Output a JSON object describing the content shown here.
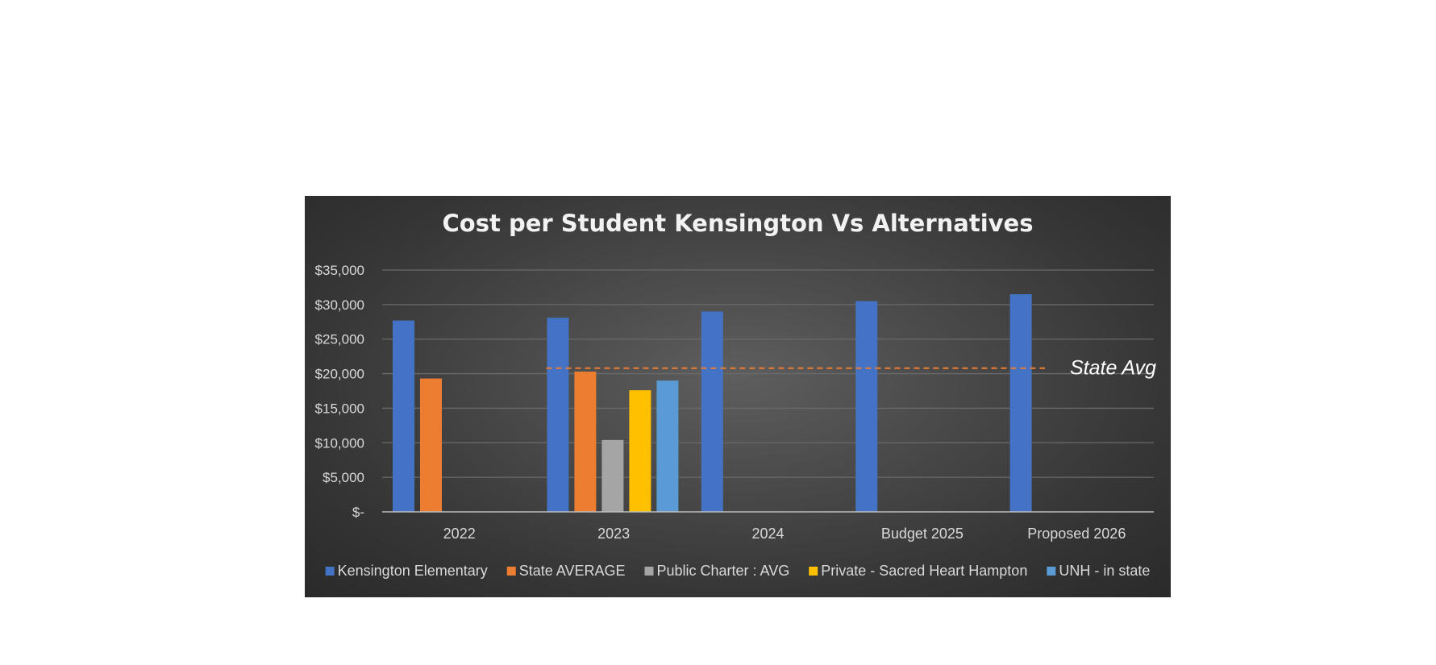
{
  "chart_data": {
    "type": "bar",
    "title": "Cost per Student Kensington  Vs Alternatives",
    "xlabel": "",
    "ylabel": "",
    "ylim": [
      0,
      35000
    ],
    "y_ticks": [
      0,
      5000,
      10000,
      15000,
      20000,
      25000,
      30000,
      35000
    ],
    "y_tick_labels": [
      "$-",
      "$5,000",
      "$10,000",
      "$15,000",
      "$20,000",
      "$25,000",
      "$30,000",
      "$35,000"
    ],
    "categories": [
      "2022",
      "2023",
      "2024",
      "Budget 2025",
      "Proposed 2026"
    ],
    "grid": true,
    "legend_position": "bottom",
    "series": [
      {
        "name": "Kensington Elementary",
        "color": "#4472c4",
        "values": [
          27700,
          28100,
          29000,
          30500,
          31500
        ]
      },
      {
        "name": "State AVERAGE",
        "color": "#ed7d31",
        "values": [
          19300,
          20300,
          null,
          null,
          null
        ]
      },
      {
        "name": "Public Charter : AVG",
        "color": "#a5a5a5",
        "values": [
          null,
          10400,
          null,
          null,
          null
        ]
      },
      {
        "name": "Private - Sacred Heart Hampton",
        "color": "#ffc000",
        "values": [
          null,
          17600,
          null,
          null,
          null
        ]
      },
      {
        "name": "UNH - in state",
        "color": "#5b9bd5",
        "values": [
          null,
          19000,
          null,
          null,
          null
        ]
      }
    ],
    "annotations": [
      {
        "text": "State Avg",
        "type": "reference-line",
        "value": 20800,
        "from_category": "2023",
        "color": "#ed7d31"
      }
    ]
  }
}
